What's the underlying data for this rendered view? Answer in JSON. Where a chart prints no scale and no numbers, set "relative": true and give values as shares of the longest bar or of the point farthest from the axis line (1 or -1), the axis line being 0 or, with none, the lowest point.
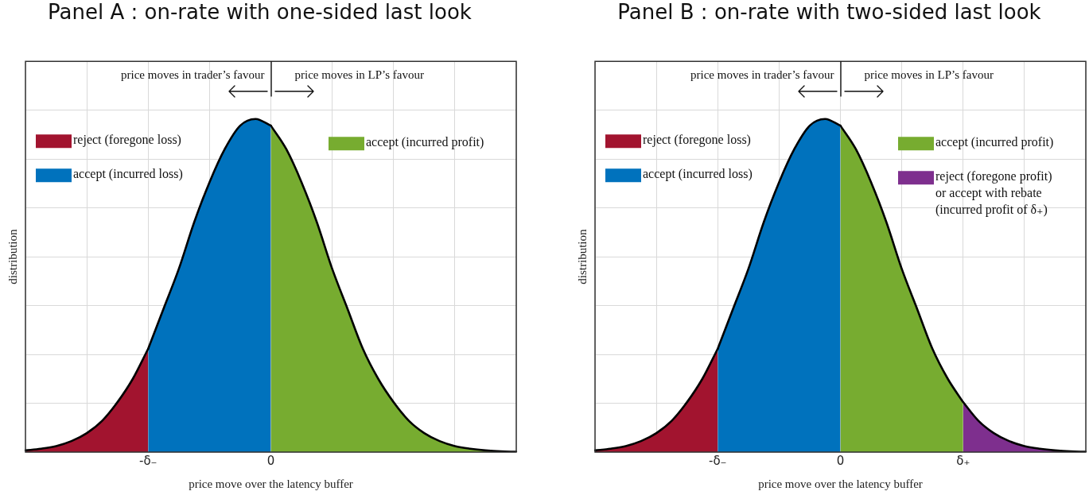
{
  "chart_data": [
    {
      "type": "area",
      "title": "Panel A : on-rate with one-sided last look",
      "xlabel": "price move over the latency buffer",
      "ylabel": "distribution",
      "relative": true,
      "grid": true,
      "legend": "top",
      "tick_labels": "x",
      "categories": [
        null,
        null,
        null,
        null,
        null,
        null,
        null,
        null,
        "-δ₋",
        null,
        null,
        null,
        null,
        null,
        null,
        null,
        "0",
        null,
        null,
        null,
        null,
        null,
        null,
        null,
        null,
        null,
        null,
        null,
        null,
        null,
        null,
        null,
        null
      ],
      "annotations": [
        "price moves in trader’s favour",
        "price moves in LP’s favour"
      ],
      "series": [
        {
          "name": "reject (foregone loss)",
          "color": "#a2142f",
          "values": [
            0.005,
            0.01,
            0.018,
            0.033,
            0.057,
            0.094,
            0.15,
            0.22,
            0.31,
            null,
            null,
            null,
            null,
            null,
            null,
            null,
            null,
            null,
            null,
            null,
            null,
            null,
            null,
            null,
            null,
            null,
            null,
            null,
            null,
            null,
            null,
            null,
            null
          ]
        },
        {
          "name": "accept (incurred loss)",
          "color": "#0072bd",
          "values": [
            null,
            null,
            null,
            null,
            null,
            null,
            null,
            null,
            0.31,
            0.43,
            0.55,
            0.69,
            0.81,
            0.91,
            0.98,
            1,
            0.98,
            null,
            null,
            null,
            null,
            null,
            null,
            null,
            null,
            null,
            null,
            null,
            null,
            null,
            null,
            null,
            null
          ]
        },
        {
          "name": "accept (incurred profit)",
          "color": "#77ac30",
          "values": [
            null,
            null,
            null,
            null,
            null,
            null,
            null,
            null,
            null,
            null,
            null,
            null,
            null,
            null,
            null,
            null,
            0.98,
            0.91,
            0.81,
            0.69,
            0.55,
            0.43,
            0.31,
            0.22,
            0.15,
            0.094,
            0.057,
            0.033,
            0.018,
            0.01,
            0.005,
            0.002,
            0.001
          ]
        }
      ]
    },
    {
      "type": "area",
      "title": "Panel B : on-rate with two-sided last look",
      "xlabel": "price move over the latency buffer",
      "ylabel": "distribution",
      "relative": true,
      "grid": true,
      "legend": "top",
      "tick_labels": "x",
      "categories": [
        null,
        null,
        null,
        null,
        null,
        null,
        null,
        null,
        "-δ₋",
        null,
        null,
        null,
        null,
        null,
        null,
        null,
        "0",
        null,
        null,
        null,
        null,
        null,
        null,
        null,
        "δ₊",
        null,
        null,
        null,
        null,
        null,
        null,
        null,
        null
      ],
      "annotations": [
        "price moves in trader’s favour",
        "price moves in LP’s favour"
      ],
      "series": [
        {
          "name": "reject (foregone loss)",
          "color": "#a2142f",
          "values": [
            0.005,
            0.01,
            0.018,
            0.033,
            0.057,
            0.094,
            0.15,
            0.22,
            0.31,
            null,
            null,
            null,
            null,
            null,
            null,
            null,
            null,
            null,
            null,
            null,
            null,
            null,
            null,
            null,
            null,
            null,
            null,
            null,
            null,
            null,
            null,
            null,
            null
          ]
        },
        {
          "name": "accept (incurred loss)",
          "color": "#0072bd",
          "values": [
            null,
            null,
            null,
            null,
            null,
            null,
            null,
            null,
            0.31,
            0.43,
            0.55,
            0.69,
            0.81,
            0.91,
            0.98,
            1,
            0.98,
            null,
            null,
            null,
            null,
            null,
            null,
            null,
            null,
            null,
            null,
            null,
            null,
            null,
            null,
            null,
            null
          ]
        },
        {
          "name": "accept (incurred profit)",
          "color": "#77ac30",
          "values": [
            null,
            null,
            null,
            null,
            null,
            null,
            null,
            null,
            null,
            null,
            null,
            null,
            null,
            null,
            null,
            null,
            0.98,
            0.91,
            0.81,
            0.69,
            0.55,
            0.43,
            0.31,
            0.22,
            0.15,
            null,
            null,
            null,
            null,
            null,
            null,
            null,
            null
          ]
        },
        {
          "name": "reject (foregone profit) or accept with rebate (incurred profit of δ₊)",
          "color": "#7e2f8e",
          "values": [
            null,
            null,
            null,
            null,
            null,
            null,
            null,
            null,
            null,
            null,
            null,
            null,
            null,
            null,
            null,
            null,
            null,
            null,
            null,
            null,
            null,
            null,
            null,
            null,
            0.15,
            0.094,
            0.057,
            0.033,
            0.018,
            0.01,
            0.005,
            0.002,
            0.001
          ]
        }
      ]
    }
  ]
}
